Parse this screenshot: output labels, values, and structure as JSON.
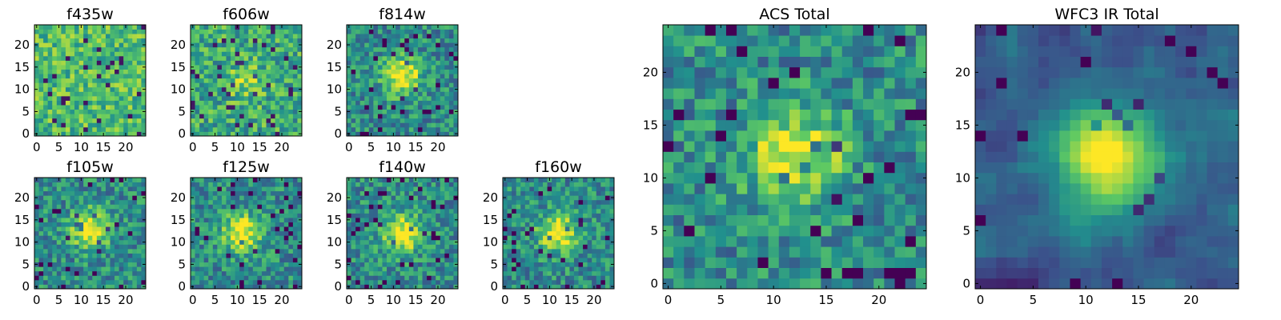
{
  "chart_data": [
    {
      "type": "heatmap",
      "title": "f435w",
      "grid": [
        25,
        25
      ],
      "xticks": [
        "0",
        "5",
        "10",
        "15",
        "20"
      ],
      "yticks": [
        "0",
        "5",
        "10",
        "15",
        "20"
      ],
      "pattern": "noise",
      "peak": [
        12,
        12
      ],
      "seed": 11
    },
    {
      "type": "heatmap",
      "title": "f606w",
      "grid": [
        25,
        25
      ],
      "xticks": [
        "0",
        "5",
        "10",
        "15",
        "20"
      ],
      "yticks": [
        "0",
        "5",
        "10",
        "15",
        "20"
      ],
      "pattern": "weak-center",
      "peak": [
        12,
        12
      ],
      "seed": 23
    },
    {
      "type": "heatmap",
      "title": "f814w",
      "grid": [
        25,
        25
      ],
      "xticks": [
        "0",
        "5",
        "10",
        "15",
        "20"
      ],
      "yticks": [
        "0",
        "5",
        "10",
        "15",
        "20"
      ],
      "pattern": "center",
      "peak": [
        12,
        13
      ],
      "seed": 37
    },
    {
      "type": "heatmap",
      "title": "f105w",
      "grid": [
        25,
        25
      ],
      "xticks": [
        "0",
        "5",
        "10",
        "15",
        "20"
      ],
      "yticks": [
        "0",
        "5",
        "10",
        "15",
        "20"
      ],
      "pattern": "center",
      "peak": [
        12,
        13
      ],
      "seed": 41
    },
    {
      "type": "heatmap",
      "title": "f125w",
      "grid": [
        25,
        25
      ],
      "xticks": [
        "0",
        "5",
        "10",
        "15",
        "20"
      ],
      "yticks": [
        "0",
        "5",
        "10",
        "15",
        "20"
      ],
      "pattern": "center",
      "peak": [
        11,
        12
      ],
      "seed": 53
    },
    {
      "type": "heatmap",
      "title": "f140w",
      "grid": [
        25,
        25
      ],
      "xticks": [
        "0",
        "5",
        "10",
        "15",
        "20"
      ],
      "yticks": [
        "0",
        "5",
        "10",
        "15",
        "20"
      ],
      "pattern": "center",
      "peak": [
        12,
        12
      ],
      "seed": 67
    },
    {
      "type": "heatmap",
      "title": "f160w",
      "grid": [
        25,
        25
      ],
      "xticks": [
        "0",
        "5",
        "10",
        "15",
        "20"
      ],
      "yticks": [
        "0",
        "5",
        "10",
        "15",
        "20"
      ],
      "pattern": "center",
      "peak": [
        12,
        12
      ],
      "seed": 79
    },
    {
      "type": "heatmap",
      "title": "ACS Total",
      "grid": [
        25,
        25
      ],
      "xticks": [
        "0",
        "5",
        "10",
        "15",
        "20"
      ],
      "yticks": [
        "0",
        "5",
        "10",
        "15",
        "20"
      ],
      "pattern": "center",
      "peak": [
        12,
        12
      ],
      "seed": 83
    },
    {
      "type": "heatmap",
      "title": "WFC3 IR Total",
      "grid": [
        25,
        25
      ],
      "xticks": [
        "0",
        "5",
        "10",
        "15",
        "20"
      ],
      "yticks": [
        "0",
        "5",
        "10",
        "15",
        "20"
      ],
      "pattern": "smooth-center",
      "peak": [
        12,
        12
      ],
      "seed": 97
    }
  ],
  "colormap": [
    "#440154",
    "#3b528b",
    "#21908d",
    "#5dc963",
    "#fde725"
  ]
}
